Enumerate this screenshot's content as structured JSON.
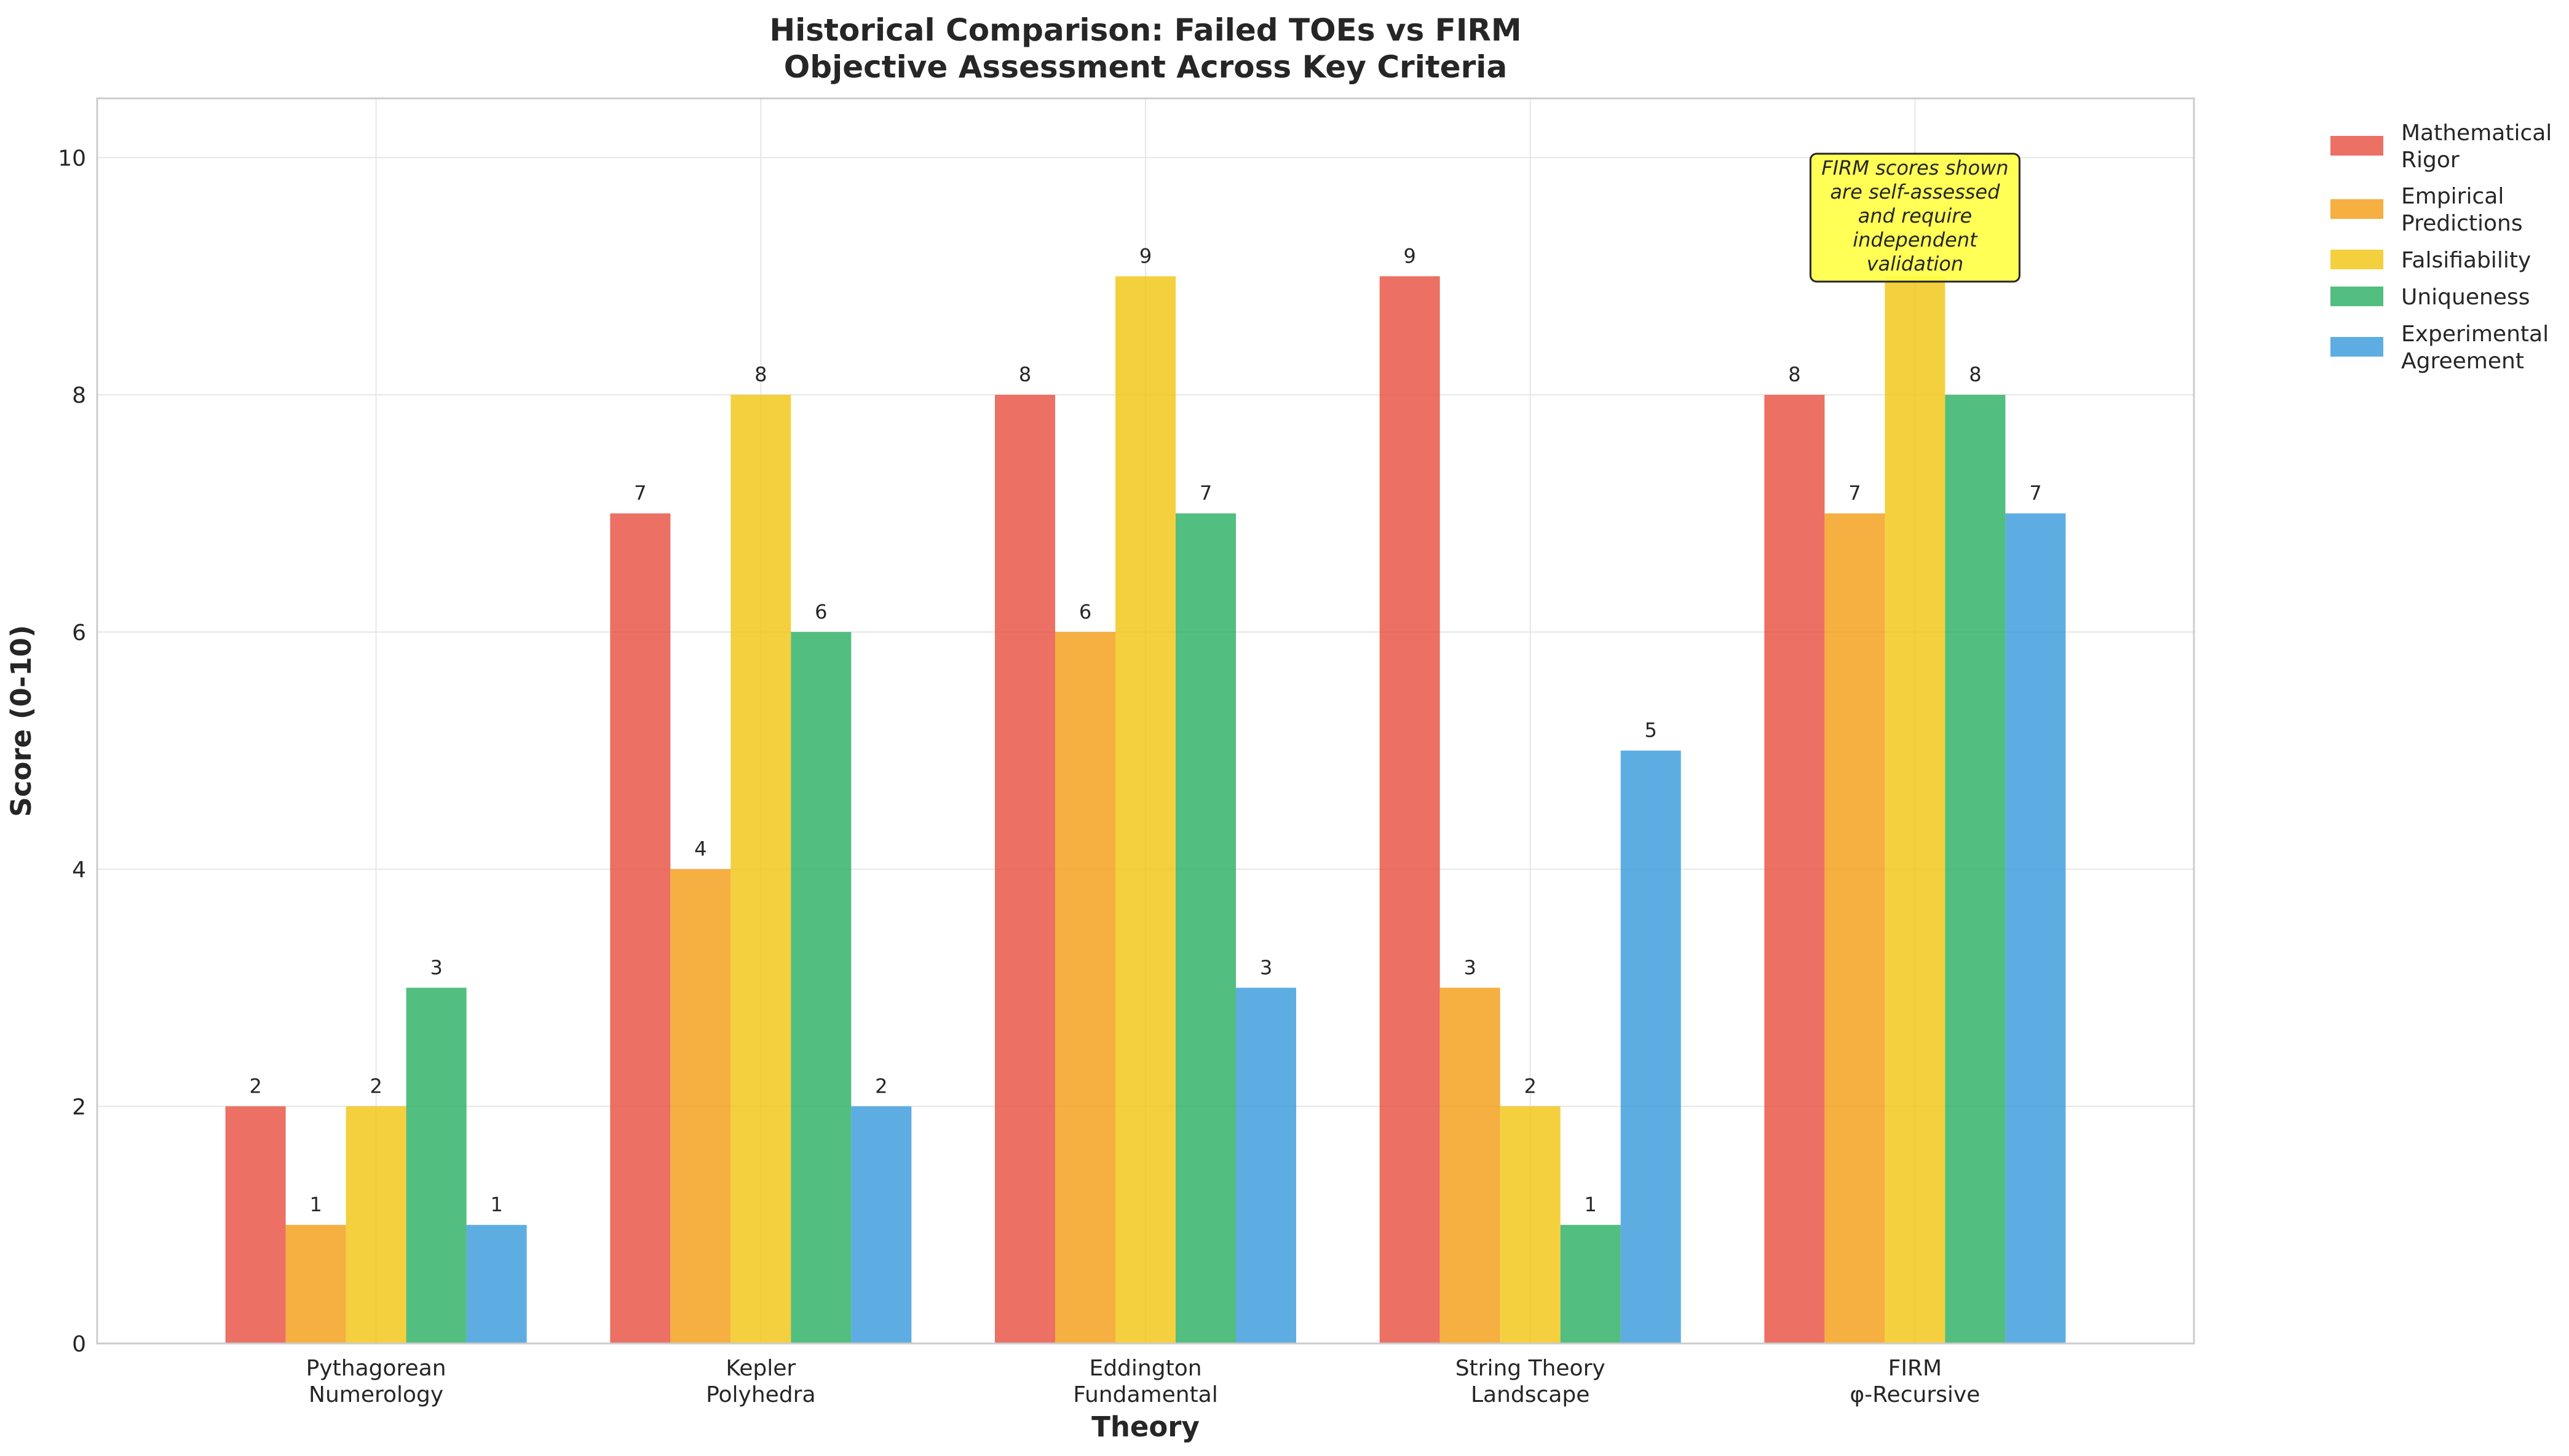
{
  "chart_data": {
    "type": "bar",
    "title": [
      "Historical Comparison: Failed TOEs vs FIRM",
      "Objective Assessment Across Key Criteria"
    ],
    "xlabel": "Theory",
    "ylabel": "Score (0-10)",
    "ylim": [
      0,
      10.5
    ],
    "yticks": [
      "0",
      "2",
      "4",
      "6",
      "8",
      "10"
    ],
    "grid": true,
    "legend_position": "outside-right",
    "categories": [
      [
        "Pythagorean",
        "Numerology"
      ],
      [
        "Kepler",
        "Polyhedra"
      ],
      [
        "Eddington",
        "Fundamental"
      ],
      [
        "String Theory",
        "Landscape"
      ],
      [
        "FIRM",
        "φ-Recursive"
      ]
    ],
    "series": [
      {
        "name": [
          "Mathematical",
          "Rigor"
        ],
        "color": "#e74c3c",
        "values": [
          2,
          7,
          8,
          9,
          8
        ],
        "labels": [
          "2",
          "7",
          "8",
          "9",
          "8"
        ]
      },
      {
        "name": [
          "Empirical",
          "Predictions"
        ],
        "color": "#f39c12",
        "values": [
          1,
          4,
          6,
          3,
          7
        ],
        "labels": [
          "1",
          "4",
          "6",
          "3",
          "7"
        ]
      },
      {
        "name": [
          "Falsifiability"
        ],
        "color": "#f1c40f",
        "values": [
          2,
          8,
          9,
          2,
          9
        ],
        "labels": [
          "2",
          "8",
          "9",
          "2",
          ""
        ]
      },
      {
        "name": [
          "Uniqueness"
        ],
        "color": "#27ae60",
        "values": [
          3,
          6,
          7,
          1,
          8
        ],
        "labels": [
          "3",
          "6",
          "7",
          "1",
          "8"
        ]
      },
      {
        "name": [
          "Experimental",
          "Agreement"
        ],
        "color": "#3498db",
        "values": [
          1,
          2,
          3,
          5,
          7
        ],
        "labels": [
          "1",
          "2",
          "3",
          "5",
          "7"
        ]
      }
    ],
    "annotation": {
      "lines": [
        "FIRM scores shown",
        "are self-assessed",
        "and require",
        "independent",
        "validation"
      ],
      "category_index": 4,
      "background": "#ffff44"
    }
  }
}
